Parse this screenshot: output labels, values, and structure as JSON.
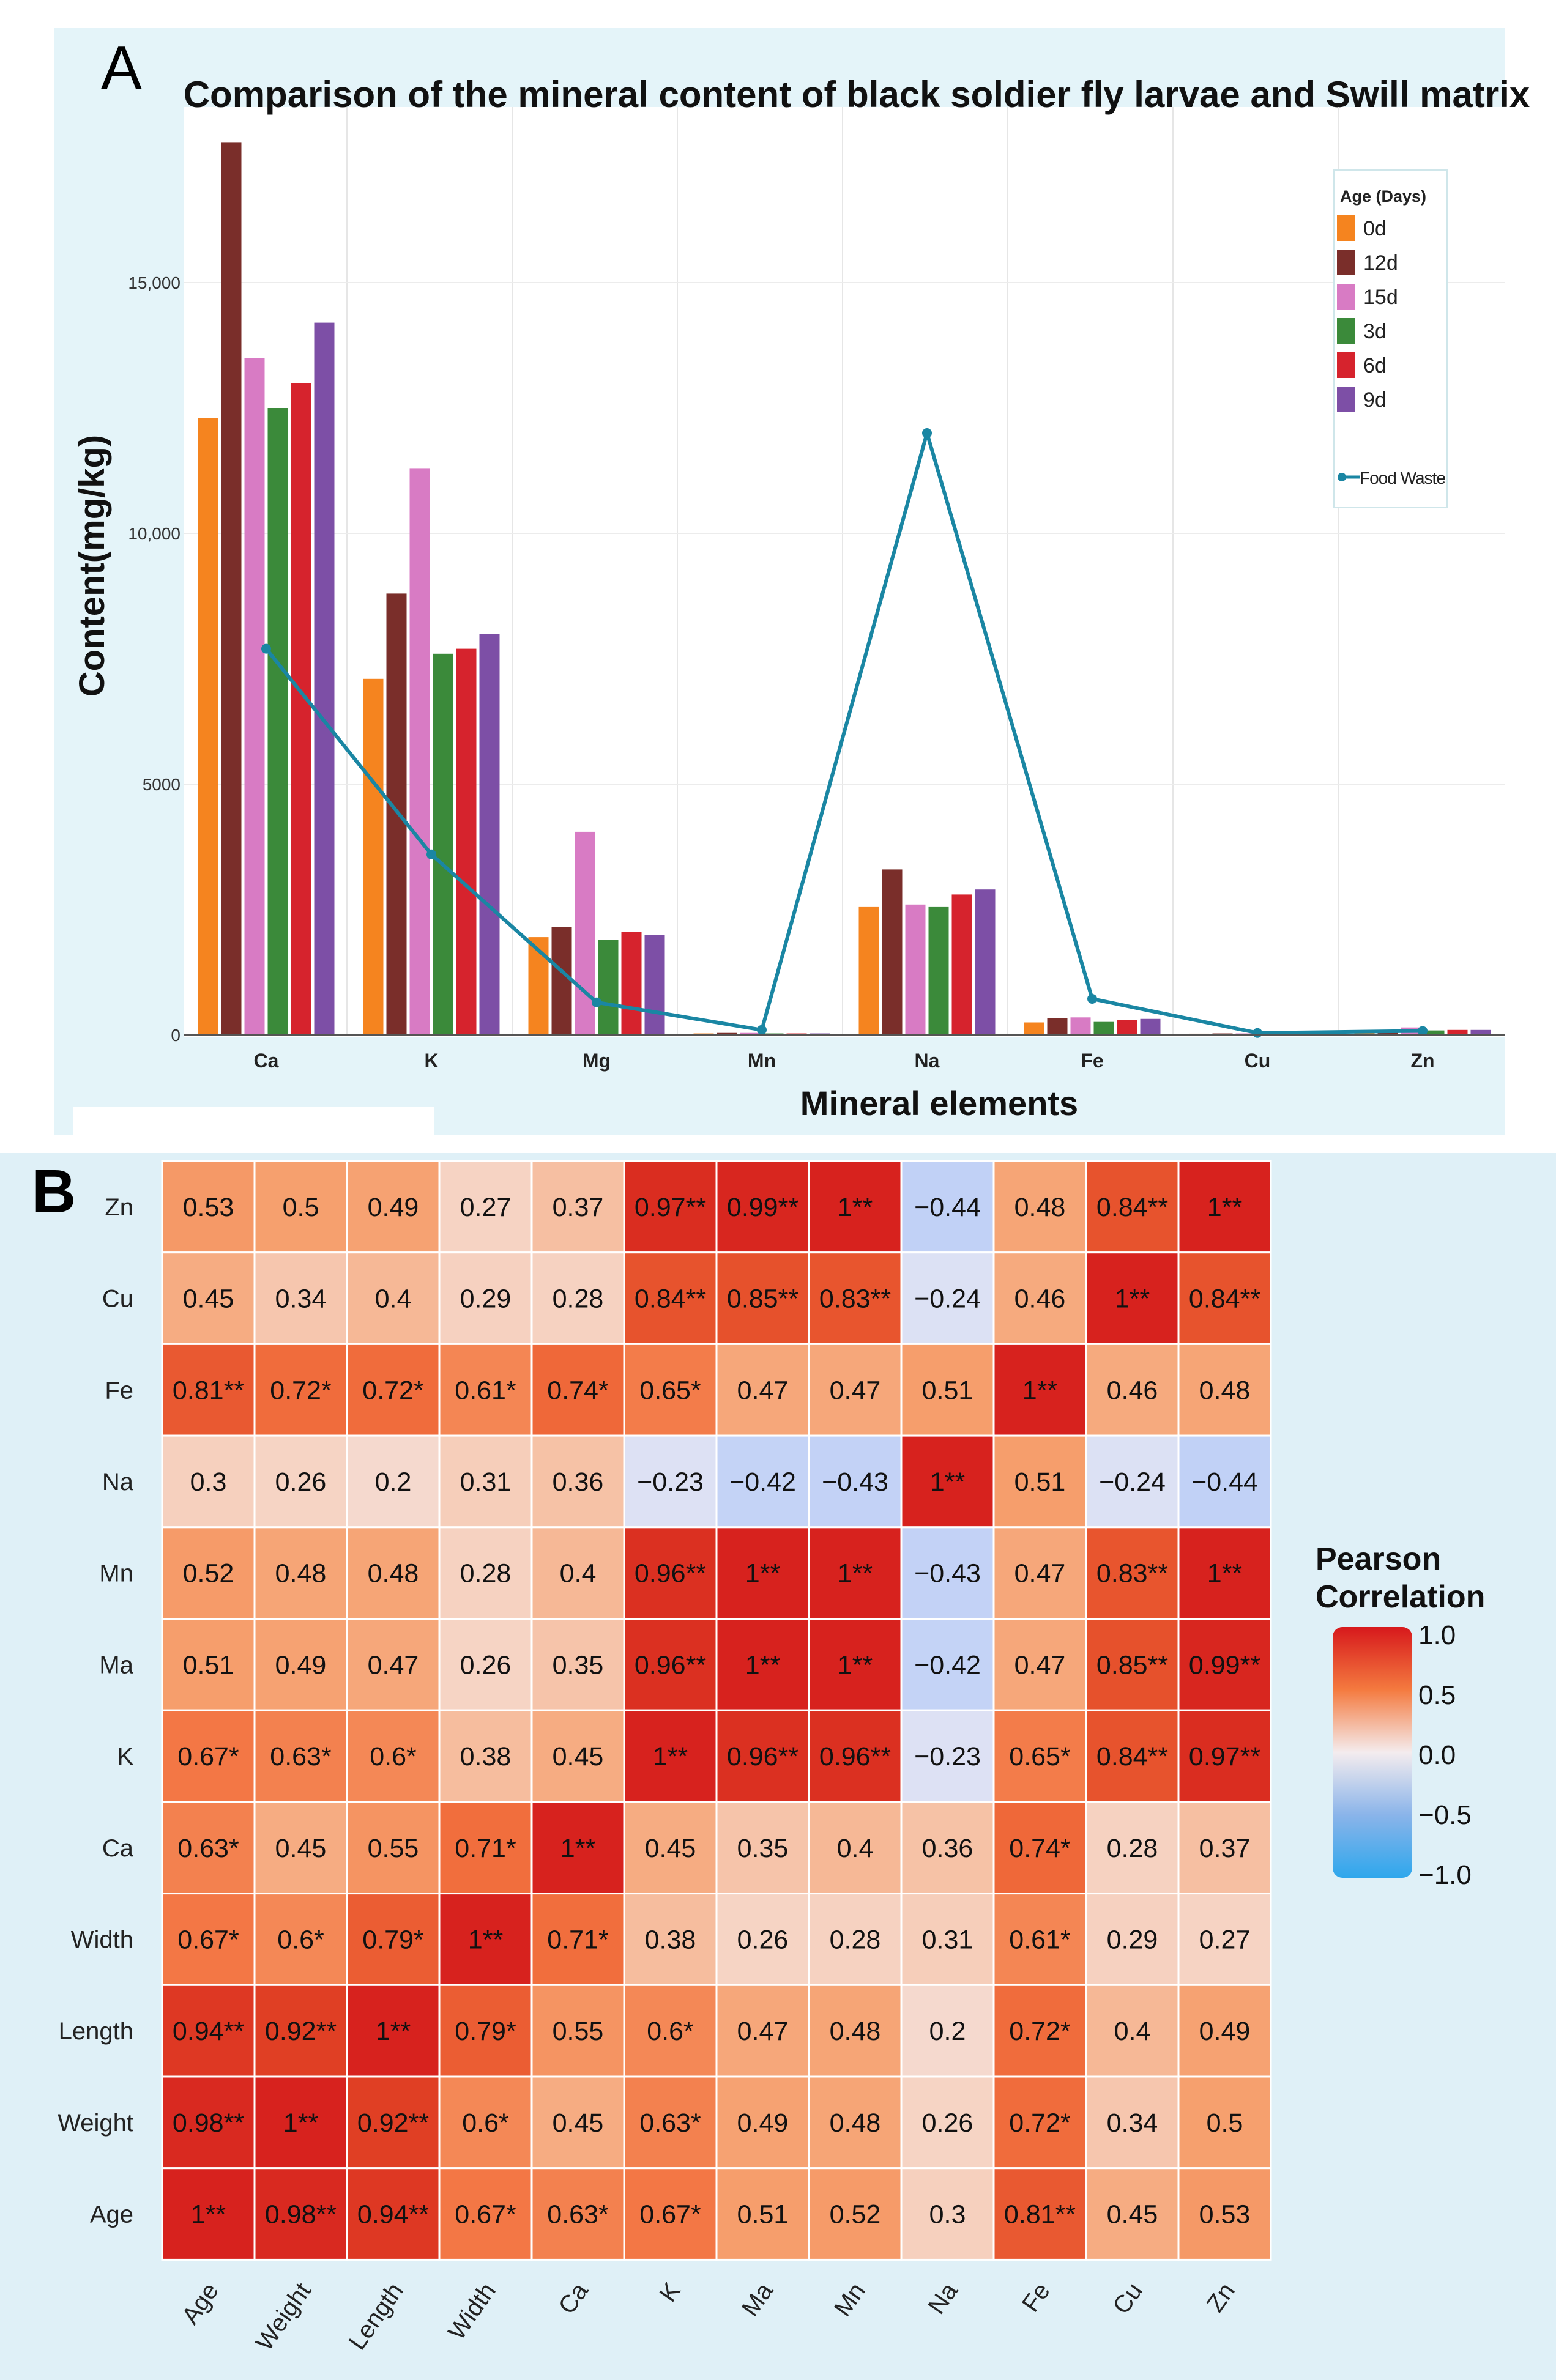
{
  "panel_a_label": "A",
  "panel_b_label": "B",
  "chart_data": [
    {
      "type": "bar",
      "title": "Comparison of the mineral content of black soldier fly larvae and Swill matrix",
      "xlabel": "Mineral elements",
      "ylabel": "Content(mg/kg)",
      "ylim": [
        0,
        18500
      ],
      "yticks": [
        0,
        5000,
        10000,
        15000
      ],
      "ytick_labels": [
        "0",
        "5000",
        "10,000",
        "15,000"
      ],
      "categories": [
        "Ca",
        "K",
        "Mg",
        "Mn",
        "Na",
        "Fe",
        "Cu",
        "Zn"
      ],
      "legend_title": "Age (Days)",
      "legend_position": "top-right",
      "series": [
        {
          "name": "0d",
          "color": "#f5841f",
          "values": [
            12300,
            7100,
            1950,
            30,
            2550,
            250,
            25,
            90
          ]
        },
        {
          "name": "12d",
          "color": "#7a2e2a",
          "values": [
            17800,
            8800,
            2150,
            40,
            3300,
            330,
            30,
            100
          ]
        },
        {
          "name": "15d",
          "color": "#d87bc4",
          "values": [
            13500,
            11300,
            4050,
            40,
            2600,
            350,
            30,
            150
          ]
        },
        {
          "name": "3d",
          "color": "#3b8a3a",
          "values": [
            12500,
            7600,
            1900,
            30,
            2550,
            260,
            25,
            90
          ]
        },
        {
          "name": "6d",
          "color": "#d6232d",
          "values": [
            13000,
            7700,
            2050,
            30,
            2800,
            300,
            28,
            100
          ]
        },
        {
          "name": "9d",
          "color": "#7d4fa6",
          "values": [
            14200,
            8000,
            2000,
            30,
            2900,
            320,
            28,
            100
          ]
        }
      ],
      "line_series": {
        "name": "Food Waste",
        "color": "#1a86a3",
        "values": [
          7700,
          3600,
          650,
          100,
          12000,
          720,
          40,
          80
        ]
      }
    },
    {
      "type": "heatmap",
      "legend_title": [
        "Pearson",
        "Correlation"
      ],
      "scale_ticks": [
        "1.0",
        "0.5",
        "0.0",
        "−0.5",
        "−1.0"
      ],
      "x_labels": [
        "Age",
        "Weight",
        "Length",
        "Width",
        "Ca",
        "K",
        "Ma",
        "Mn",
        "Na",
        "Fe",
        "Cu",
        "Zn"
      ],
      "y_labels": [
        "Zn",
        "Cu",
        "Fe",
        "Na",
        "Mn",
        "Ma",
        "K",
        "Ca",
        "Width",
        "Length",
        "Weight",
        "Age"
      ],
      "values": [
        [
          0.53,
          0.5,
          0.49,
          0.27,
          0.37,
          0.97,
          0.99,
          1,
          -0.44,
          0.48,
          0.84,
          1
        ],
        [
          0.45,
          0.34,
          0.4,
          0.29,
          0.28,
          0.84,
          0.85,
          0.83,
          -0.24,
          0.46,
          1,
          0.84
        ],
        [
          0.81,
          0.72,
          0.72,
          0.61,
          0.74,
          0.65,
          0.47,
          0.47,
          0.51,
          1,
          0.46,
          0.48
        ],
        [
          0.3,
          0.26,
          0.2,
          0.31,
          0.36,
          -0.23,
          -0.42,
          -0.43,
          1,
          0.51,
          -0.24,
          -0.44
        ],
        [
          0.52,
          0.48,
          0.48,
          0.28,
          0.4,
          0.96,
          1,
          1,
          -0.43,
          0.47,
          0.83,
          1
        ],
        [
          0.51,
          0.49,
          0.47,
          0.26,
          0.35,
          0.96,
          1,
          1,
          -0.42,
          0.47,
          0.85,
          0.99
        ],
        [
          0.67,
          0.63,
          0.6,
          0.38,
          0.45,
          1,
          0.96,
          0.96,
          -0.23,
          0.65,
          0.84,
          0.97
        ],
        [
          0.63,
          0.45,
          0.55,
          0.71,
          1,
          0.45,
          0.35,
          0.4,
          0.36,
          0.74,
          0.28,
          0.37
        ],
        [
          0.67,
          0.6,
          0.79,
          1,
          0.71,
          0.38,
          0.26,
          0.28,
          0.31,
          0.61,
          0.29,
          0.27
        ],
        [
          0.94,
          0.92,
          1,
          0.79,
          0.55,
          0.6,
          0.47,
          0.48,
          0.2,
          0.72,
          0.4,
          0.49
        ],
        [
          0.98,
          1,
          0.92,
          0.6,
          0.45,
          0.63,
          0.49,
          0.48,
          0.26,
          0.72,
          0.34,
          0.5
        ],
        [
          1,
          0.98,
          0.94,
          0.67,
          0.63,
          0.67,
          0.51,
          0.52,
          0.3,
          0.81,
          0.45,
          0.53
        ]
      ],
      "labels": [
        [
          "0.53",
          "0.5",
          "0.49",
          "0.27",
          "0.37",
          "0.97**",
          "0.99**",
          "1**",
          "−0.44",
          "0.48",
          "0.84**",
          "1**"
        ],
        [
          "0.45",
          "0.34",
          "0.4",
          "0.29",
          "0.28",
          "0.84**",
          "0.85**",
          "0.83**",
          "−0.24",
          "0.46",
          "1**",
          "0.84**"
        ],
        [
          "0.81**",
          "0.72*",
          "0.72*",
          "0.61*",
          "0.74*",
          "0.65*",
          "0.47",
          "0.47",
          "0.51",
          "1**",
          "0.46",
          "0.48"
        ],
        [
          "0.3",
          "0.26",
          "0.2",
          "0.31",
          "0.36",
          "−0.23",
          "−0.42",
          "−0.43",
          "1**",
          "0.51",
          "−0.24",
          "−0.44"
        ],
        [
          "0.52",
          "0.48",
          "0.48",
          "0.28",
          "0.4",
          "0.96**",
          "1**",
          "1**",
          "−0.43",
          "0.47",
          "0.83**",
          "1**"
        ],
        [
          "0.51",
          "0.49",
          "0.47",
          "0.26",
          "0.35",
          "0.96**",
          "1**",
          "1**",
          "−0.42",
          "0.47",
          "0.85**",
          "0.99**"
        ],
        [
          "0.67*",
          "0.63*",
          "0.6*",
          "0.38",
          "0.45",
          "1**",
          "0.96**",
          "0.96**",
          "−0.23",
          "0.65*",
          "0.84**",
          "0.97**"
        ],
        [
          "0.63*",
          "0.45",
          "0.55",
          "0.71*",
          "1**",
          "0.45",
          "0.35",
          "0.4",
          "0.36",
          "0.74*",
          "0.28",
          "0.37"
        ],
        [
          "0.67*",
          "0.6*",
          "0.79*",
          "1**",
          "0.71*",
          "0.38",
          "0.26",
          "0.28",
          "0.31",
          "0.61*",
          "0.29",
          "0.27"
        ],
        [
          "0.94**",
          "0.92**",
          "1**",
          "0.79*",
          "0.55",
          "0.6*",
          "0.47",
          "0.48",
          "0.2",
          "0.72*",
          "0.4",
          "0.49"
        ],
        [
          "0.98**",
          "1**",
          "0.92**",
          "0.6*",
          "0.45",
          "0.63*",
          "0.49",
          "0.48",
          "0.26",
          "0.72*",
          "0.34",
          "0.5"
        ],
        [
          "1**",
          "0.98**",
          "0.94**",
          "0.67*",
          "0.63*",
          "0.67*",
          "0.51",
          "0.52",
          "0.3",
          "0.81**",
          "0.45",
          "0.53"
        ]
      ]
    }
  ]
}
